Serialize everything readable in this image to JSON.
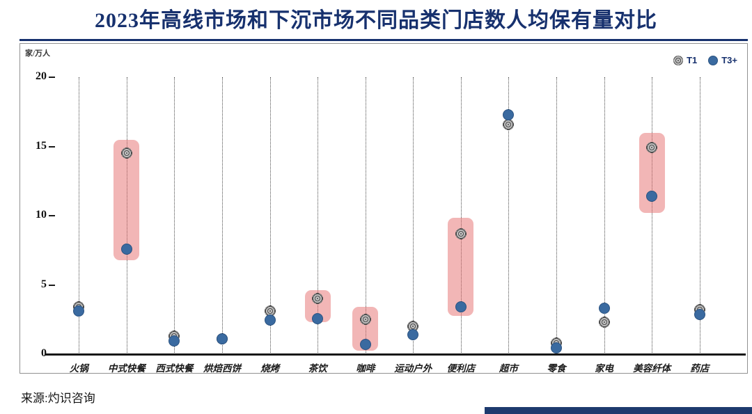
{
  "page": {
    "title": "2023年高线市场和下沉市场不同品类门店数人均保有量对比",
    "source": "来源:灼识咨询"
  },
  "colors": {
    "title_navy": "#17316e",
    "t1_gray": "#909090",
    "t3_blue": "#3a6aa0",
    "highlight_pink": "rgba(229,110,110,0.5)",
    "bottom_bar_navy": "#1d3a6e"
  },
  "chart_data": {
    "type": "scatter",
    "title": "2023年高线市场和下沉市场不同品类门店数人均保有量对比",
    "ylabel": "家/万人",
    "ylim": [
      0,
      20
    ],
    "yticks": [
      0,
      5,
      10,
      15,
      20
    ],
    "grid": "vertical-dotted",
    "legend_position": "top-right",
    "categories": [
      "火锅",
      "中式快餐",
      "西式快餐",
      "烘焙西饼",
      "烧烤",
      "茶饮",
      "咖啡",
      "运动户外",
      "便利店",
      "超市",
      "零食",
      "家电",
      "美容纤体",
      "药店"
    ],
    "series": [
      {
        "name": "T1",
        "values": [
          3.4,
          14.5,
          1.3,
          1.1,
          3.1,
          4.0,
          2.5,
          2.0,
          8.7,
          16.6,
          0.8,
          2.3,
          14.9,
          3.2
        ]
      },
      {
        "name": "T3+",
        "values": [
          3.1,
          7.6,
          0.95,
          1.1,
          2.45,
          2.55,
          0.7,
          1.4,
          3.4,
          17.3,
          0.45,
          3.3,
          11.4,
          2.85
        ]
      }
    ],
    "highlights": [
      {
        "category": "中式快餐",
        "from": 6.8,
        "to": 15.5
      },
      {
        "category": "茶饮",
        "from": 2.3,
        "to": 4.6
      },
      {
        "category": "咖啡",
        "from": 0.25,
        "to": 3.4
      },
      {
        "category": "便利店",
        "from": 2.75,
        "to": 9.85
      },
      {
        "category": "美容纤体",
        "from": 10.2,
        "to": 16.0
      }
    ]
  }
}
